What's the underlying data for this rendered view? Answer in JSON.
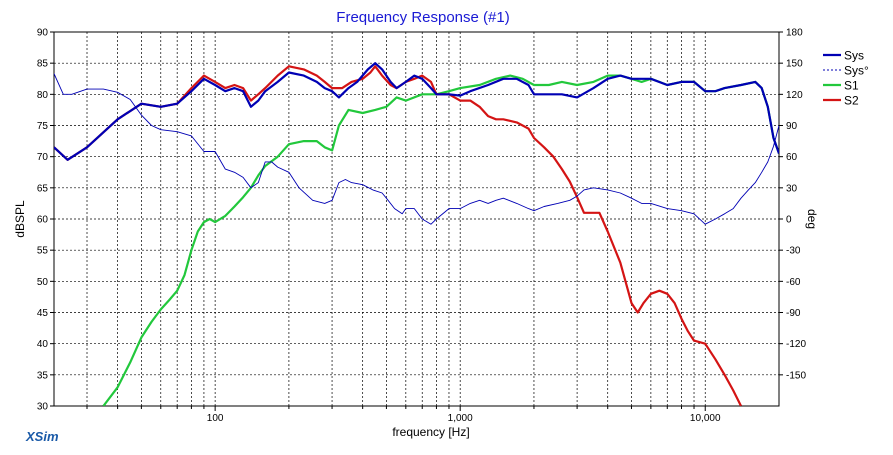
{
  "chart_data": {
    "type": "line",
    "title": "Frequency Response (#1)",
    "xlabel": "frequency [Hz]",
    "ylabel": "dBSPL",
    "y2label": "deg",
    "x_scale": "log",
    "xlim": [
      22,
      20000
    ],
    "ylim": [
      30,
      90
    ],
    "y2lim": [
      -180,
      180
    ],
    "x_tick_labels": [
      {
        "value": 100,
        "label": "100"
      },
      {
        "value": 1000,
        "label": "1,000"
      },
      {
        "value": 10000,
        "label": "10,000"
      }
    ],
    "y_ticks": [
      30,
      35,
      40,
      45,
      50,
      55,
      60,
      65,
      70,
      75,
      80,
      85,
      90
    ],
    "y2_ticks": [
      -150,
      -120,
      -90,
      -60,
      -30,
      0,
      30,
      60,
      90,
      120,
      150,
      180
    ],
    "grid": true,
    "legend_position": "top-right",
    "brand": "XSim",
    "colors": {
      "title": "#1a1ad4",
      "Sys": "#0000b4",
      "Sys_phase": "#0000b4",
      "S1": "#22c83c",
      "S2": "#d41414",
      "brand": "#1a5aa8"
    },
    "series": [
      {
        "name": "Sys",
        "axis": "left",
        "style": "solid",
        "points": [
          [
            22,
            71.5
          ],
          [
            25,
            69.5
          ],
          [
            30,
            71.5
          ],
          [
            40,
            76
          ],
          [
            50,
            78.5
          ],
          [
            60,
            78
          ],
          [
            70,
            78.5
          ],
          [
            80,
            80.5
          ],
          [
            90,
            82.5
          ],
          [
            100,
            81.5
          ],
          [
            110,
            80.5
          ],
          [
            120,
            81
          ],
          [
            130,
            80.5
          ],
          [
            140,
            78
          ],
          [
            150,
            79
          ],
          [
            160,
            80.5
          ],
          [
            180,
            82
          ],
          [
            200,
            83.5
          ],
          [
            230,
            83
          ],
          [
            260,
            82
          ],
          [
            280,
            81
          ],
          [
            300,
            80.5
          ],
          [
            320,
            79.5
          ],
          [
            350,
            81
          ],
          [
            380,
            82
          ],
          [
            420,
            84
          ],
          [
            450,
            85
          ],
          [
            480,
            84
          ],
          [
            520,
            82
          ],
          [
            550,
            81
          ],
          [
            600,
            82
          ],
          [
            650,
            83
          ],
          [
            700,
            82.5
          ],
          [
            760,
            81
          ],
          [
            800,
            80
          ],
          [
            900,
            80
          ],
          [
            1000,
            79.8
          ],
          [
            1100,
            80.5
          ],
          [
            1300,
            81.5
          ],
          [
            1500,
            82.5
          ],
          [
            1700,
            82.5
          ],
          [
            1900,
            81.5
          ],
          [
            2000,
            80
          ],
          [
            2300,
            80
          ],
          [
            2600,
            80
          ],
          [
            3000,
            79.5
          ],
          [
            3500,
            81
          ],
          [
            4000,
            82.5
          ],
          [
            4500,
            83
          ],
          [
            5000,
            82.5
          ],
          [
            6000,
            82.5
          ],
          [
            7000,
            81.5
          ],
          [
            8000,
            82
          ],
          [
            9000,
            82
          ],
          [
            10000,
            80.5
          ],
          [
            11000,
            80.5
          ],
          [
            12000,
            81
          ],
          [
            14000,
            81.5
          ],
          [
            16000,
            82
          ],
          [
            17000,
            81
          ],
          [
            18000,
            78
          ],
          [
            19000,
            73
          ],
          [
            20000,
            70.5
          ]
        ]
      },
      {
        "name": "Sys°",
        "axis": "right",
        "style": "dashed",
        "points": [
          [
            22,
            140
          ],
          [
            24,
            120
          ],
          [
            26,
            120
          ],
          [
            30,
            125
          ],
          [
            35,
            125
          ],
          [
            40,
            122
          ],
          [
            45,
            115
          ],
          [
            50,
            100
          ],
          [
            55,
            90
          ],
          [
            60,
            86
          ],
          [
            70,
            84
          ],
          [
            80,
            80
          ],
          [
            90,
            65
          ],
          [
            100,
            65
          ],
          [
            110,
            48
          ],
          [
            120,
            45
          ],
          [
            130,
            40
          ],
          [
            140,
            30
          ],
          [
            150,
            35
          ],
          [
            160,
            55
          ],
          [
            170,
            55
          ],
          [
            180,
            50
          ],
          [
            200,
            45
          ],
          [
            220,
            30
          ],
          [
            250,
            18
          ],
          [
            280,
            15
          ],
          [
            300,
            18
          ],
          [
            320,
            35
          ],
          [
            340,
            38
          ],
          [
            360,
            35
          ],
          [
            400,
            33
          ],
          [
            440,
            28
          ],
          [
            480,
            25
          ],
          [
            500,
            20
          ],
          [
            540,
            10
          ],
          [
            580,
            5
          ],
          [
            600,
            10
          ],
          [
            650,
            10
          ],
          [
            700,
            0
          ],
          [
            760,
            -5
          ],
          [
            800,
            0
          ],
          [
            900,
            10
          ],
          [
            1000,
            10
          ],
          [
            1100,
            15
          ],
          [
            1200,
            18
          ],
          [
            1300,
            15
          ],
          [
            1400,
            18
          ],
          [
            1500,
            20
          ],
          [
            1700,
            15
          ],
          [
            1900,
            10
          ],
          [
            2000,
            8
          ],
          [
            2200,
            12
          ],
          [
            2500,
            15
          ],
          [
            2800,
            18
          ],
          [
            3000,
            22
          ],
          [
            3200,
            28
          ],
          [
            3500,
            30
          ],
          [
            4000,
            28
          ],
          [
            4500,
            25
          ],
          [
            5000,
            20
          ],
          [
            5500,
            15
          ],
          [
            6000,
            15
          ],
          [
            7000,
            10
          ],
          [
            8000,
            8
          ],
          [
            9000,
            5
          ],
          [
            10000,
            -5
          ],
          [
            11000,
            0
          ],
          [
            12000,
            5
          ],
          [
            13000,
            10
          ],
          [
            14000,
            20
          ],
          [
            15000,
            28
          ],
          [
            16000,
            35
          ],
          [
            17000,
            45
          ],
          [
            18000,
            55
          ],
          [
            19000,
            70
          ],
          [
            20000,
            90
          ]
        ]
      },
      {
        "name": "S1",
        "axis": "left",
        "style": "solid",
        "points": [
          [
            35,
            30
          ],
          [
            40,
            33
          ],
          [
            45,
            37
          ],
          [
            50,
            41
          ],
          [
            55,
            43.5
          ],
          [
            60,
            45.5
          ],
          [
            65,
            47
          ],
          [
            70,
            48.5
          ],
          [
            75,
            51
          ],
          [
            80,
            55
          ],
          [
            85,
            58
          ],
          [
            90,
            59.5
          ],
          [
            95,
            60
          ],
          [
            100,
            59.5
          ],
          [
            110,
            60.5
          ],
          [
            120,
            62
          ],
          [
            130,
            63.5
          ],
          [
            140,
            65
          ],
          [
            150,
            67
          ],
          [
            160,
            68.5
          ],
          [
            180,
            70
          ],
          [
            200,
            72
          ],
          [
            230,
            72.5
          ],
          [
            260,
            72.5
          ],
          [
            280,
            71.5
          ],
          [
            300,
            71
          ],
          [
            320,
            75
          ],
          [
            350,
            77.5
          ],
          [
            400,
            77
          ],
          [
            450,
            77.5
          ],
          [
            500,
            78
          ],
          [
            550,
            79.5
          ],
          [
            600,
            79
          ],
          [
            700,
            80
          ],
          [
            800,
            80
          ],
          [
            900,
            80.5
          ],
          [
            1000,
            81
          ],
          [
            1200,
            81.5
          ],
          [
            1400,
            82.5
          ],
          [
            1600,
            83
          ],
          [
            1800,
            82.5
          ],
          [
            2000,
            81.5
          ],
          [
            2300,
            81.5
          ],
          [
            2600,
            82
          ],
          [
            3000,
            81.5
          ],
          [
            3500,
            82
          ],
          [
            4000,
            83
          ],
          [
            4500,
            83
          ],
          [
            5000,
            82.5
          ],
          [
            5500,
            82
          ],
          [
            6000,
            82.5
          ],
          [
            6500,
            82
          ],
          [
            7000,
            81.5
          ],
          [
            8000,
            82
          ],
          [
            9000,
            82
          ],
          [
            10000,
            80.5
          ],
          [
            11000,
            80.5
          ],
          [
            12000,
            81
          ],
          [
            14000,
            81.5
          ],
          [
            16000,
            82
          ],
          [
            17000,
            81
          ],
          [
            18000,
            78
          ],
          [
            19000,
            73
          ],
          [
            20000,
            70.5
          ]
        ]
      },
      {
        "name": "S2",
        "axis": "left",
        "style": "solid",
        "points": [
          [
            22,
            71.5
          ],
          [
            25,
            69.5
          ],
          [
            30,
            71.5
          ],
          [
            40,
            76
          ],
          [
            50,
            78.5
          ],
          [
            60,
            78
          ],
          [
            70,
            78.5
          ],
          [
            80,
            81
          ],
          [
            90,
            83
          ],
          [
            100,
            82
          ],
          [
            110,
            81
          ],
          [
            120,
            81.5
          ],
          [
            130,
            81
          ],
          [
            140,
            79
          ],
          [
            150,
            80
          ],
          [
            160,
            81
          ],
          [
            180,
            83
          ],
          [
            200,
            84.5
          ],
          [
            230,
            84
          ],
          [
            260,
            83
          ],
          [
            280,
            82
          ],
          [
            300,
            81
          ],
          [
            330,
            81
          ],
          [
            360,
            82
          ],
          [
            400,
            82.5
          ],
          [
            430,
            83.5
          ],
          [
            450,
            84.5
          ],
          [
            480,
            83
          ],
          [
            520,
            81.5
          ],
          [
            550,
            81
          ],
          [
            600,
            82
          ],
          [
            650,
            82.5
          ],
          [
            700,
            83
          ],
          [
            760,
            82
          ],
          [
            800,
            80
          ],
          [
            900,
            80
          ],
          [
            1000,
            79
          ],
          [
            1100,
            79
          ],
          [
            1200,
            78
          ],
          [
            1300,
            76.5
          ],
          [
            1400,
            76
          ],
          [
            1500,
            76
          ],
          [
            1700,
            75.5
          ],
          [
            1900,
            74.5
          ],
          [
            2000,
            73
          ],
          [
            2200,
            71.5
          ],
          [
            2400,
            70
          ],
          [
            2600,
            68
          ],
          [
            2800,
            66
          ],
          [
            3000,
            63.5
          ],
          [
            3200,
            61
          ],
          [
            3500,
            61
          ],
          [
            3700,
            61
          ],
          [
            4000,
            58
          ],
          [
            4500,
            53
          ],
          [
            5000,
            46.5
          ],
          [
            5300,
            45
          ],
          [
            5600,
            46.5
          ],
          [
            6000,
            48
          ],
          [
            6500,
            48.5
          ],
          [
            7000,
            48
          ],
          [
            7500,
            46.5
          ],
          [
            8000,
            44
          ],
          [
            8500,
            42
          ],
          [
            9000,
            40.5
          ],
          [
            10000,
            40
          ],
          [
            11000,
            37.5
          ],
          [
            12000,
            35
          ],
          [
            13000,
            32.5
          ],
          [
            14000,
            30
          ]
        ]
      }
    ]
  }
}
